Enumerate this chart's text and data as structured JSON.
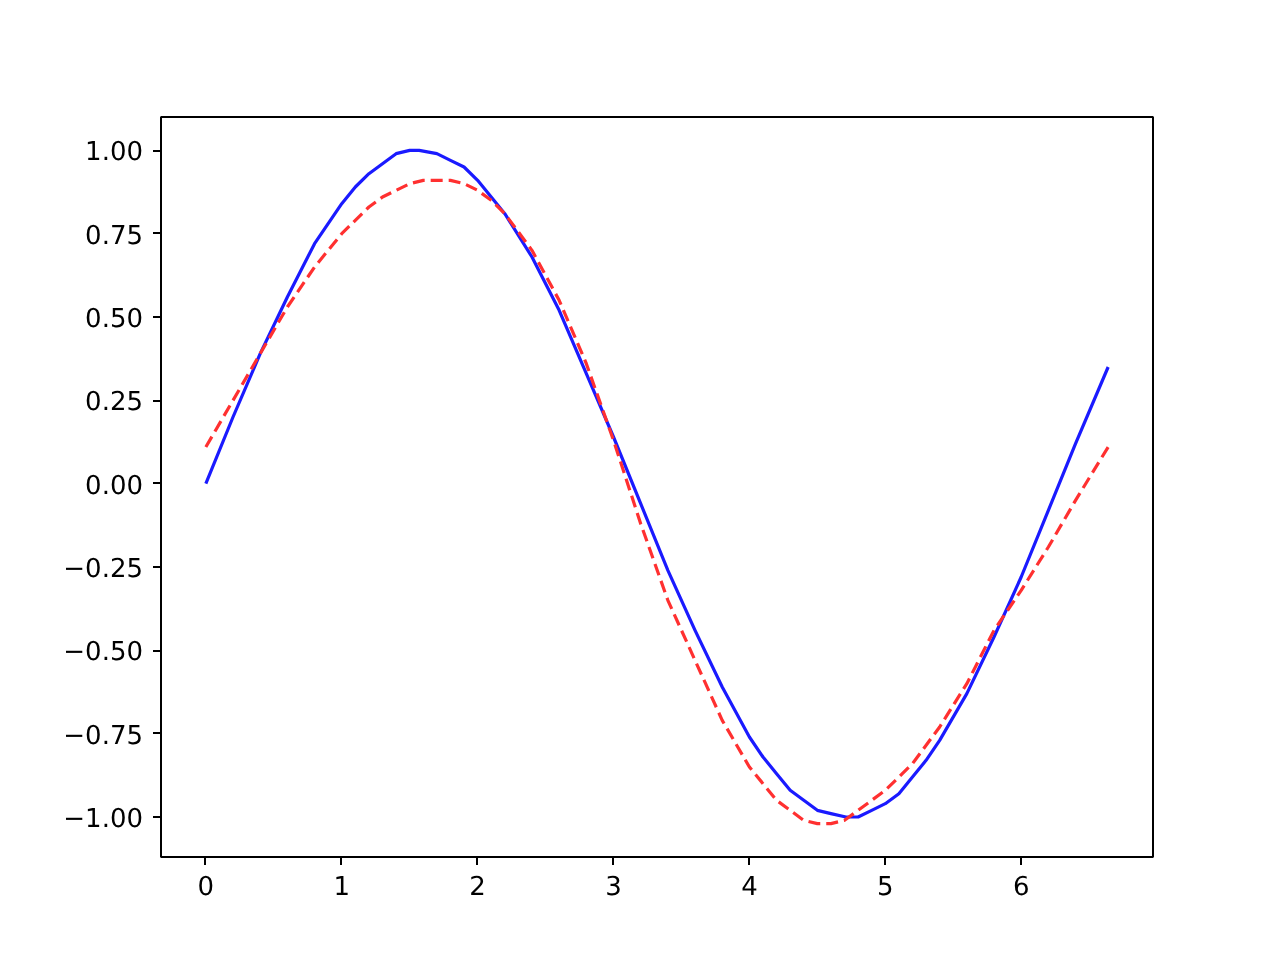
{
  "chart_data": {
    "type": "line",
    "xlim": [
      -0.33,
      6.97
    ],
    "ylim": [
      -1.12,
      1.1
    ],
    "xticks": [
      0,
      1,
      2,
      3,
      4,
      5,
      6
    ],
    "yticks": [
      {
        "value": -1,
        "label": "−1.00"
      },
      {
        "value": -0.75,
        "label": "−0.75"
      },
      {
        "value": -0.5,
        "label": "−0.50"
      },
      {
        "value": -0.25,
        "label": "−0.25"
      },
      {
        "value": 0,
        "label": "0.00"
      },
      {
        "value": 0.25,
        "label": "0.25"
      },
      {
        "value": 0.5,
        "label": "0.50"
      },
      {
        "value": 0.75,
        "label": "0.75"
      },
      {
        "value": 1,
        "label": "1.00"
      }
    ],
    "grid": false,
    "series": [
      {
        "color": "#1a1aff",
        "line_style": "solid",
        "x": [
          0,
          0.2,
          0.4,
          0.6,
          0.8,
          1.0,
          1.1,
          1.2,
          1.3,
          1.4,
          1.5,
          1.57,
          1.7,
          1.8,
          1.9,
          2.0,
          2.1,
          2.2,
          2.4,
          2.6,
          2.8,
          3.0,
          3.2,
          3.4,
          3.6,
          3.8,
          4.0,
          4.1,
          4.2,
          4.3,
          4.4,
          4.5,
          4.6,
          4.71,
          4.8,
          4.9,
          5.0,
          5.1,
          5.2,
          5.3,
          5.4,
          5.6,
          5.8,
          6.0,
          6.2,
          6.4,
          6.64
        ],
        "values": [
          0.0,
          0.2,
          0.39,
          0.56,
          0.72,
          0.84,
          0.89,
          0.93,
          0.96,
          0.99,
          1.0,
          1.0,
          0.99,
          0.97,
          0.95,
          0.91,
          0.86,
          0.81,
          0.68,
          0.52,
          0.33,
          0.14,
          -0.06,
          -0.26,
          -0.44,
          -0.61,
          -0.76,
          -0.82,
          -0.87,
          -0.92,
          -0.95,
          -0.98,
          -0.99,
          -1.0,
          -1.0,
          -0.98,
          -0.96,
          -0.93,
          -0.88,
          -0.83,
          -0.77,
          -0.63,
          -0.46,
          -0.28,
          -0.08,
          0.12,
          0.35
        ]
      },
      {
        "color": "#ff3030",
        "line_style": "dashed",
        "x": [
          0,
          0.2,
          0.4,
          0.6,
          0.8,
          1.0,
          1.1,
          1.2,
          1.3,
          1.4,
          1.5,
          1.6,
          1.7,
          1.8,
          1.9,
          2.0,
          2.1,
          2.2,
          2.4,
          2.6,
          2.8,
          3.0,
          3.2,
          3.4,
          3.6,
          3.8,
          4.0,
          4.1,
          4.2,
          4.3,
          4.4,
          4.5,
          4.6,
          4.7,
          4.8,
          4.9,
          5.0,
          5.1,
          5.2,
          5.4,
          5.6,
          5.8,
          6.0,
          6.2,
          6.4,
          6.64
        ],
        "values": [
          0.11,
          0.25,
          0.39,
          0.53,
          0.65,
          0.75,
          0.79,
          0.83,
          0.86,
          0.88,
          0.9,
          0.91,
          0.91,
          0.91,
          0.9,
          0.88,
          0.85,
          0.81,
          0.7,
          0.55,
          0.36,
          0.13,
          -0.12,
          -0.35,
          -0.53,
          -0.71,
          -0.85,
          -0.9,
          -0.95,
          -0.98,
          -1.01,
          -1.02,
          -1.02,
          -1.01,
          -0.98,
          -0.95,
          -0.92,
          -0.88,
          -0.84,
          -0.73,
          -0.6,
          -0.44,
          -0.32,
          -0.19,
          -0.05,
          0.11
        ]
      }
    ]
  }
}
